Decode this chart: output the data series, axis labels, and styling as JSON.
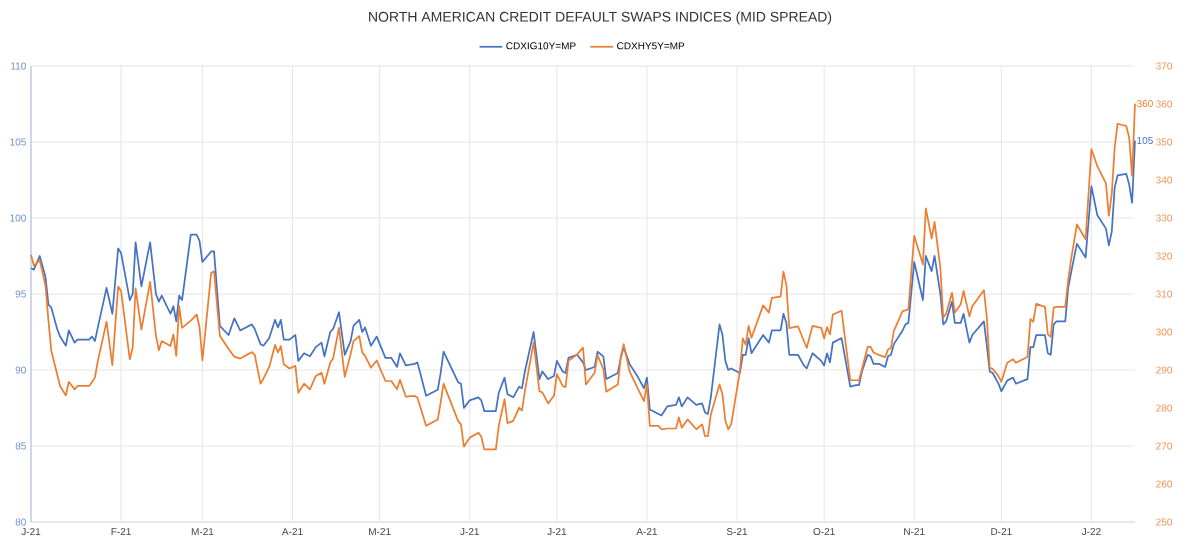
{
  "chart_data": {
    "type": "line",
    "title": "NORTH AMERICAN CREDIT DEFAULT SWAPS INDICES (MID SPREAD)",
    "legend": "top",
    "grid": true,
    "xlim": [
      "2021-01-01",
      "2022-01-16"
    ],
    "xticks": [
      {
        "value": "2021-01-01",
        "label": "J-21"
      },
      {
        "value": "2021-02-01",
        "label": "F-21"
      },
      {
        "value": "2021-03-01",
        "label": "M-21"
      },
      {
        "value": "2021-04-01",
        "label": "A-21"
      },
      {
        "value": "2021-05-01",
        "label": "M-21"
      },
      {
        "value": "2021-06-01",
        "label": "J-21"
      },
      {
        "value": "2021-07-01",
        "label": "J-21"
      },
      {
        "value": "2021-08-01",
        "label": "A-21"
      },
      {
        "value": "2021-09-01",
        "label": "S-21"
      },
      {
        "value": "2021-10-01",
        "label": "O-21"
      },
      {
        "value": "2021-11-01",
        "label": "N-21"
      },
      {
        "value": "2021-12-01",
        "label": "D-21"
      },
      {
        "value": "2022-01-01",
        "label": "J-22"
      }
    ],
    "ylim": [
      80,
      110
    ],
    "yticks": [
      80,
      85,
      90,
      95,
      100,
      105,
      110
    ],
    "y2lim": [
      250,
      370
    ],
    "y2ticks": [
      250,
      260,
      270,
      280,
      290,
      300,
      310,
      320,
      330,
      340,
      350,
      360,
      370
    ],
    "x": [
      "2021-01-01",
      "2021-01-02",
      "2021-01-04",
      "2021-01-06",
      "2021-01-07",
      "2021-01-08",
      "2021-01-10",
      "2021-01-11",
      "2021-01-13",
      "2021-01-14",
      "2021-01-16",
      "2021-01-17",
      "2021-01-21",
      "2021-01-22",
      "2021-01-23",
      "2021-01-24",
      "2021-01-27",
      "2021-01-29",
      "2021-01-31",
      "2021-02-01",
      "2021-02-04",
      "2021-02-05",
      "2021-02-06",
      "2021-02-08",
      "2021-02-11",
      "2021-02-13",
      "2021-02-14",
      "2021-02-15",
      "2021-02-18",
      "2021-02-19",
      "2021-02-20",
      "2021-02-21",
      "2021-02-22",
      "2021-02-25",
      "2021-02-27",
      "2021-02-28",
      "2021-03-01",
      "2021-03-04",
      "2021-03-05",
      "2021-03-07",
      "2021-03-10",
      "2021-03-12",
      "2021-03-14",
      "2021-03-18",
      "2021-03-19",
      "2021-03-21",
      "2021-03-22",
      "2021-03-24",
      "2021-03-26",
      "2021-03-27",
      "2021-03-28",
      "2021-03-29",
      "2021-03-31",
      "2021-04-02",
      "2021-04-03",
      "2021-04-05",
      "2021-04-07",
      "2021-04-09",
      "2021-04-11",
      "2021-04-12",
      "2021-04-14",
      "2021-04-15",
      "2021-04-17",
      "2021-04-19",
      "2021-04-21",
      "2021-04-22",
      "2021-04-24",
      "2021-04-25",
      "2021-04-26",
      "2021-04-28",
      "2021-04-30",
      "2021-05-03",
      "2021-05-05",
      "2021-05-07",
      "2021-05-08",
      "2021-05-10",
      "2021-05-13",
      "2021-05-14",
      "2021-05-17",
      "2021-05-21",
      "2021-05-22",
      "2021-05-23",
      "2021-05-28",
      "2021-05-29",
      "2021-05-30",
      "2021-06-01",
      "2021-06-04",
      "2021-06-05",
      "2021-06-06",
      "2021-06-10",
      "2021-06-11",
      "2021-06-13",
      "2021-06-14",
      "2021-06-16",
      "2021-06-18",
      "2021-06-19",
      "2021-06-20",
      "2021-06-23",
      "2021-06-25",
      "2021-06-26",
      "2021-06-28",
      "2021-06-30",
      "2021-07-01",
      "2021-07-03",
      "2021-07-04",
      "2021-07-05",
      "2021-07-08",
      "2021-07-10",
      "2021-07-11",
      "2021-07-14",
      "2021-07-15",
      "2021-07-17",
      "2021-07-18",
      "2021-07-22",
      "2021-07-23",
      "2021-07-24",
      "2021-07-26",
      "2021-07-29",
      "2021-07-31",
      "2021-08-01",
      "2021-08-02",
      "2021-08-05",
      "2021-08-06",
      "2021-08-08",
      "2021-08-11",
      "2021-08-12",
      "2021-08-13",
      "2021-08-15",
      "2021-08-18",
      "2021-08-20",
      "2021-08-21",
      "2021-08-22",
      "2021-08-23",
      "2021-08-26",
      "2021-08-27",
      "2021-08-28",
      "2021-08-29",
      "2021-08-30",
      "2021-09-02",
      "2021-09-03",
      "2021-09-04",
      "2021-09-05",
      "2021-09-06",
      "2021-09-10",
      "2021-09-12",
      "2021-09-13",
      "2021-09-16",
      "2021-09-17",
      "2021-09-18",
      "2021-09-19",
      "2021-09-22",
      "2021-09-24",
      "2021-09-25",
      "2021-09-27",
      "2021-09-30",
      "2021-10-01",
      "2021-10-02",
      "2021-10-03",
      "2021-10-04",
      "2021-10-07",
      "2021-10-10",
      "2021-10-12",
      "2021-10-13",
      "2021-10-14",
      "2021-10-16",
      "2021-10-17",
      "2021-10-18",
      "2021-10-20",
      "2021-10-22",
      "2021-10-23",
      "2021-10-24",
      "2021-10-25",
      "2021-10-28",
      "2021-10-29",
      "2021-10-30",
      "2021-11-01",
      "2021-11-04",
      "2021-11-05",
      "2021-11-07",
      "2021-11-08",
      "2021-11-10",
      "2021-11-11",
      "2021-11-12",
      "2021-11-14",
      "2021-11-15",
      "2021-11-17",
      "2021-11-18",
      "2021-11-20",
      "2021-11-21",
      "2021-11-25",
      "2021-11-26",
      "2021-11-27",
      "2021-11-28",
      "2021-11-30",
      "2021-12-01",
      "2021-12-03",
      "2021-12-05",
      "2021-12-06",
      "2021-12-10",
      "2021-12-11",
      "2021-12-12",
      "2021-12-13",
      "2021-12-16",
      "2021-12-17",
      "2021-12-18",
      "2021-12-19",
      "2021-12-20",
      "2021-12-23",
      "2021-12-24",
      "2021-12-25",
      "2021-12-27",
      "2021-12-30",
      "2022-01-01",
      "2022-01-03",
      "2022-01-06",
      "2022-01-07",
      "2022-01-08",
      "2022-01-09",
      "2022-01-10",
      "2022-01-13",
      "2022-01-14",
      "2022-01-15",
      "2022-01-16"
    ],
    "series": [
      {
        "name": "CDXIG10Y=MP",
        "color": "#4472c4",
        "values": [
          96.7,
          96.6,
          97.5,
          96.1,
          94.3,
          94.1,
          92.7,
          92.2,
          91.6,
          92.6,
          91.8,
          92.0,
          92.0,
          92.2,
          91.9,
          92.8,
          95.4,
          93.7,
          98.0,
          97.7,
          94.6,
          95.0,
          98.4,
          95.5,
          98.4,
          95.0,
          94.5,
          94.9,
          93.7,
          94.2,
          93.2,
          94.9,
          94.6,
          98.9,
          98.9,
          98.5,
          97.1,
          97.8,
          97.8,
          92.9,
          92.3,
          93.4,
          92.6,
          93.0,
          92.7,
          91.7,
          91.6,
          92.1,
          93.3,
          92.8,
          93.3,
          92.0,
          92.0,
          92.3,
          90.6,
          91.1,
          90.9,
          91.5,
          91.8,
          90.9,
          92.5,
          92.7,
          93.8,
          91.0,
          91.9,
          92.9,
          93.3,
          92.5,
          92.8,
          91.6,
          92.2,
          90.8,
          90.8,
          90.2,
          91.1,
          90.3,
          90.4,
          90.5,
          88.3,
          88.7,
          89.8,
          91.2,
          89.2,
          89.1,
          87.5,
          88.0,
          88.2,
          88.0,
          87.3,
          87.3,
          88.5,
          89.5,
          88.4,
          88.2,
          88.9,
          88.8,
          89.9,
          92.5,
          89.4,
          89.9,
          89.4,
          89.6,
          90.6,
          89.9,
          89.8,
          90.8,
          91.0,
          90.5,
          90.0,
          90.2,
          91.2,
          90.9,
          89.4,
          89.8,
          90.8,
          91.5,
          90.4,
          89.5,
          88.8,
          89.5,
          87.4,
          87.1,
          87.0,
          87.6,
          87.7,
          88.2,
          87.6,
          88.2,
          87.7,
          87.8,
          87.2,
          87.1,
          88.2,
          93.0,
          92.3,
          90.6,
          90.0,
          90.1,
          89.8,
          91.0,
          91.0,
          92.1,
          91.1,
          92.3,
          91.8,
          92.6,
          92.6,
          93.7,
          93.1,
          91.0,
          91.0,
          90.3,
          90.1,
          91.1,
          90.6,
          90.3,
          91.1,
          90.5,
          91.8,
          92.1,
          88.9,
          89.0,
          89.0,
          89.9,
          91.0,
          90.9,
          90.4,
          90.4,
          90.2,
          90.9,
          91.0,
          91.7,
          92.6,
          93.0,
          93.1,
          97.1,
          94.6,
          97.5,
          96.5,
          97.5,
          95.0,
          93.0,
          93.2,
          94.5,
          93.1,
          93.1,
          93.7,
          91.8,
          92.3,
          93.2,
          91.6,
          89.9,
          89.8,
          89.1,
          88.6,
          89.3,
          89.5,
          89.1,
          89.4,
          91.5,
          91.5,
          92.3,
          92.3,
          91.1,
          91.0,
          93.0,
          93.2,
          93.2,
          95.4,
          96.4,
          98.3,
          97.4,
          102.1,
          100.2,
          99.3,
          98.2,
          99.1,
          102.0,
          102.8,
          102.9,
          102.2,
          101.0,
          105.1
        ],
        "value_labels": [
          null,
          null,
          null,
          null,
          null,
          null,
          null,
          null,
          null,
          null,
          null,
          null,
          null,
          null,
          null,
          null,
          null,
          null,
          null,
          null,
          null,
          null,
          null,
          null,
          null,
          null,
          null,
          null,
          null,
          null,
          null,
          null,
          null,
          null,
          null,
          null,
          null,
          null,
          null,
          null,
          null,
          null,
          null,
          null,
          null,
          null,
          null,
          null,
          null,
          null,
          null,
          null,
          null,
          null,
          null,
          null,
          null,
          null,
          null,
          null,
          null,
          null,
          null,
          null,
          null,
          null,
          null,
          null,
          null,
          null,
          null,
          null,
          null,
          null,
          null,
          null,
          null,
          null,
          null,
          null,
          null,
          null,
          null,
          null,
          null,
          null,
          null,
          null,
          null,
          null,
          null,
          null,
          null,
          null,
          null,
          null,
          null,
          null,
          null,
          null,
          null,
          null,
          null,
          null,
          null,
          null,
          null,
          null,
          null,
          null,
          null,
          null,
          null,
          null,
          null,
          null,
          null,
          null,
          null,
          null,
          null,
          null,
          null,
          null,
          null,
          null,
          null,
          null,
          null,
          null,
          null,
          null,
          null,
          null,
          null,
          null,
          null,
          null,
          null,
          null,
          null,
          null,
          null,
          null,
          null,
          null,
          null,
          null,
          null,
          null,
          null,
          null,
          null,
          null,
          null,
          null,
          null,
          null,
          null,
          null,
          null,
          null,
          null,
          null,
          null,
          null,
          null,
          null,
          null,
          null,
          null,
          null,
          null,
          null,
          null,
          null,
          null,
          null,
          null,
          null,
          null,
          null,
          null,
          null,
          null,
          null,
          null,
          null,
          null,
          null,
          null,
          null,
          null,
          null,
          null,
          null,
          null,
          null,
          null,
          null,
          null,
          null,
          null,
          null,
          null,
          null,
          null,
          null,
          null,
          null,
          null,
          null,
          null,
          null,
          null,
          null,
          null,
          null,
          null,
          null,
          null,
          null,
          "105"
        ]
      },
      {
        "name": "CDXHY5Y=MP",
        "color": "#ed7d31",
        "axis": "y2",
        "values": [
          320.3,
          317.4,
          318.9,
          312.1,
          303.0,
          295.0,
          288.9,
          285.8,
          283.3,
          286.9,
          284.9,
          285.8,
          285.8,
          286.8,
          288.0,
          292.4,
          302.7,
          291.3,
          312.0,
          310.8,
          292.8,
          295.9,
          311.5,
          300.6,
          313.2,
          299.0,
          295.2,
          297.6,
          296.3,
          299.4,
          293.7,
          306.8,
          301.1,
          303.0,
          304.6,
          301.3,
          292.5,
          315.5,
          316.0,
          299.0,
          295.5,
          293.5,
          293.0,
          294.7,
          294.0,
          286.4,
          287.7,
          290.8,
          296.6,
          294.6,
          296.3,
          291.5,
          290.4,
          291.1,
          284.0,
          286.4,
          284.9,
          288.4,
          289.3,
          286.4,
          291.9,
          293.1,
          301.1,
          288.2,
          294.1,
          297.6,
          298.9,
          294.6,
          293.7,
          290.6,
          292.5,
          287.1,
          287.1,
          284.9,
          287.4,
          283.0,
          283.2,
          282.7,
          275.3,
          277.0,
          281.4,
          286.4,
          276.6,
          275.7,
          269.8,
          272.2,
          273.5,
          272.4,
          269.1,
          269.1,
          275.3,
          282.3,
          276.0,
          276.6,
          280.1,
          279.3,
          284.5,
          297.2,
          284.4,
          284.1,
          281.2,
          283.2,
          288.9,
          285.8,
          285.5,
          292.4,
          294.1,
          295.9,
          286.2,
          289.3,
          293.9,
          290.2,
          284.3,
          286.2,
          293.4,
          296.8,
          289.7,
          284.9,
          281.8,
          286.2,
          275.3,
          275.3,
          274.4,
          274.6,
          274.6,
          277.5,
          274.8,
          277.0,
          274.4,
          275.7,
          272.6,
          272.6,
          278.3,
          286.2,
          283.6,
          276.6,
          274.4,
          275.7,
          289.7,
          298.3,
          296.7,
          301.6,
          298.5,
          307.0,
          305.1,
          309.0,
          309.3,
          315.9,
          312.4,
          301.0,
          301.5,
          297.7,
          295.8,
          301.6,
          301.1,
          298.3,
          301.3,
          299.4,
          304.6,
          305.6,
          287.3,
          287.3,
          287.3,
          290.2,
          296.1,
          296.1,
          294.6,
          293.9,
          293.4,
          295.4,
          295.8,
          300.3,
          305.5,
          305.7,
          306.0,
          325.3,
          317.8,
          332.5,
          324.6,
          329.0,
          316.9,
          303.8,
          304.8,
          310.3,
          305.1,
          307.3,
          310.8,
          304.1,
          306.8,
          311.0,
          303.8,
          290.6,
          290.3,
          288.4,
          286.9,
          291.9,
          292.8,
          291.9,
          293.4,
          303.4,
          302.7,
          307.4,
          306.6,
          299.4,
          298.7,
          306.4,
          306.6,
          306.6,
          313.6,
          319.1,
          328.3,
          324.4,
          348.1,
          343.7,
          339.1,
          330.6,
          336.3,
          348.5,
          354.8,
          354.2,
          351.1,
          341.1,
          360.1
        ],
        "value_labels": [
          null,
          null,
          null,
          null,
          null,
          null,
          null,
          null,
          null,
          null,
          null,
          null,
          null,
          null,
          null,
          null,
          null,
          null,
          null,
          null,
          null,
          null,
          null,
          null,
          null,
          null,
          null,
          null,
          null,
          null,
          null,
          null,
          null,
          null,
          null,
          null,
          null,
          null,
          null,
          null,
          null,
          null,
          null,
          null,
          null,
          null,
          null,
          null,
          null,
          null,
          null,
          null,
          null,
          null,
          null,
          null,
          null,
          null,
          null,
          null,
          null,
          null,
          null,
          null,
          null,
          null,
          null,
          null,
          null,
          null,
          null,
          null,
          null,
          null,
          null,
          null,
          null,
          null,
          null,
          null,
          null,
          null,
          null,
          null,
          null,
          null,
          null,
          null,
          null,
          null,
          null,
          null,
          null,
          null,
          null,
          null,
          null,
          null,
          null,
          null,
          null,
          null,
          null,
          null,
          null,
          null,
          null,
          null,
          null,
          null,
          null,
          null,
          null,
          null,
          null,
          null,
          null,
          null,
          null,
          null,
          null,
          null,
          null,
          null,
          null,
          null,
          null,
          null,
          null,
          null,
          null,
          null,
          null,
          null,
          null,
          null,
          null,
          null,
          null,
          null,
          null,
          null,
          null,
          null,
          null,
          null,
          null,
          null,
          null,
          null,
          null,
          null,
          null,
          null,
          null,
          null,
          null,
          null,
          null,
          null,
          null,
          null,
          null,
          null,
          null,
          null,
          null,
          null,
          null,
          null,
          null,
          null,
          null,
          null,
          null,
          null,
          null,
          null,
          null,
          null,
          null,
          null,
          null,
          null,
          null,
          null,
          null,
          null,
          null,
          null,
          null,
          null,
          null,
          null,
          null,
          null,
          null,
          null,
          null,
          null,
          null,
          null,
          null,
          null,
          null,
          null,
          null,
          null,
          null,
          null,
          null,
          null,
          null,
          null,
          null,
          null,
          null,
          null,
          null,
          null,
          null,
          null,
          "360"
        ]
      }
    ]
  }
}
